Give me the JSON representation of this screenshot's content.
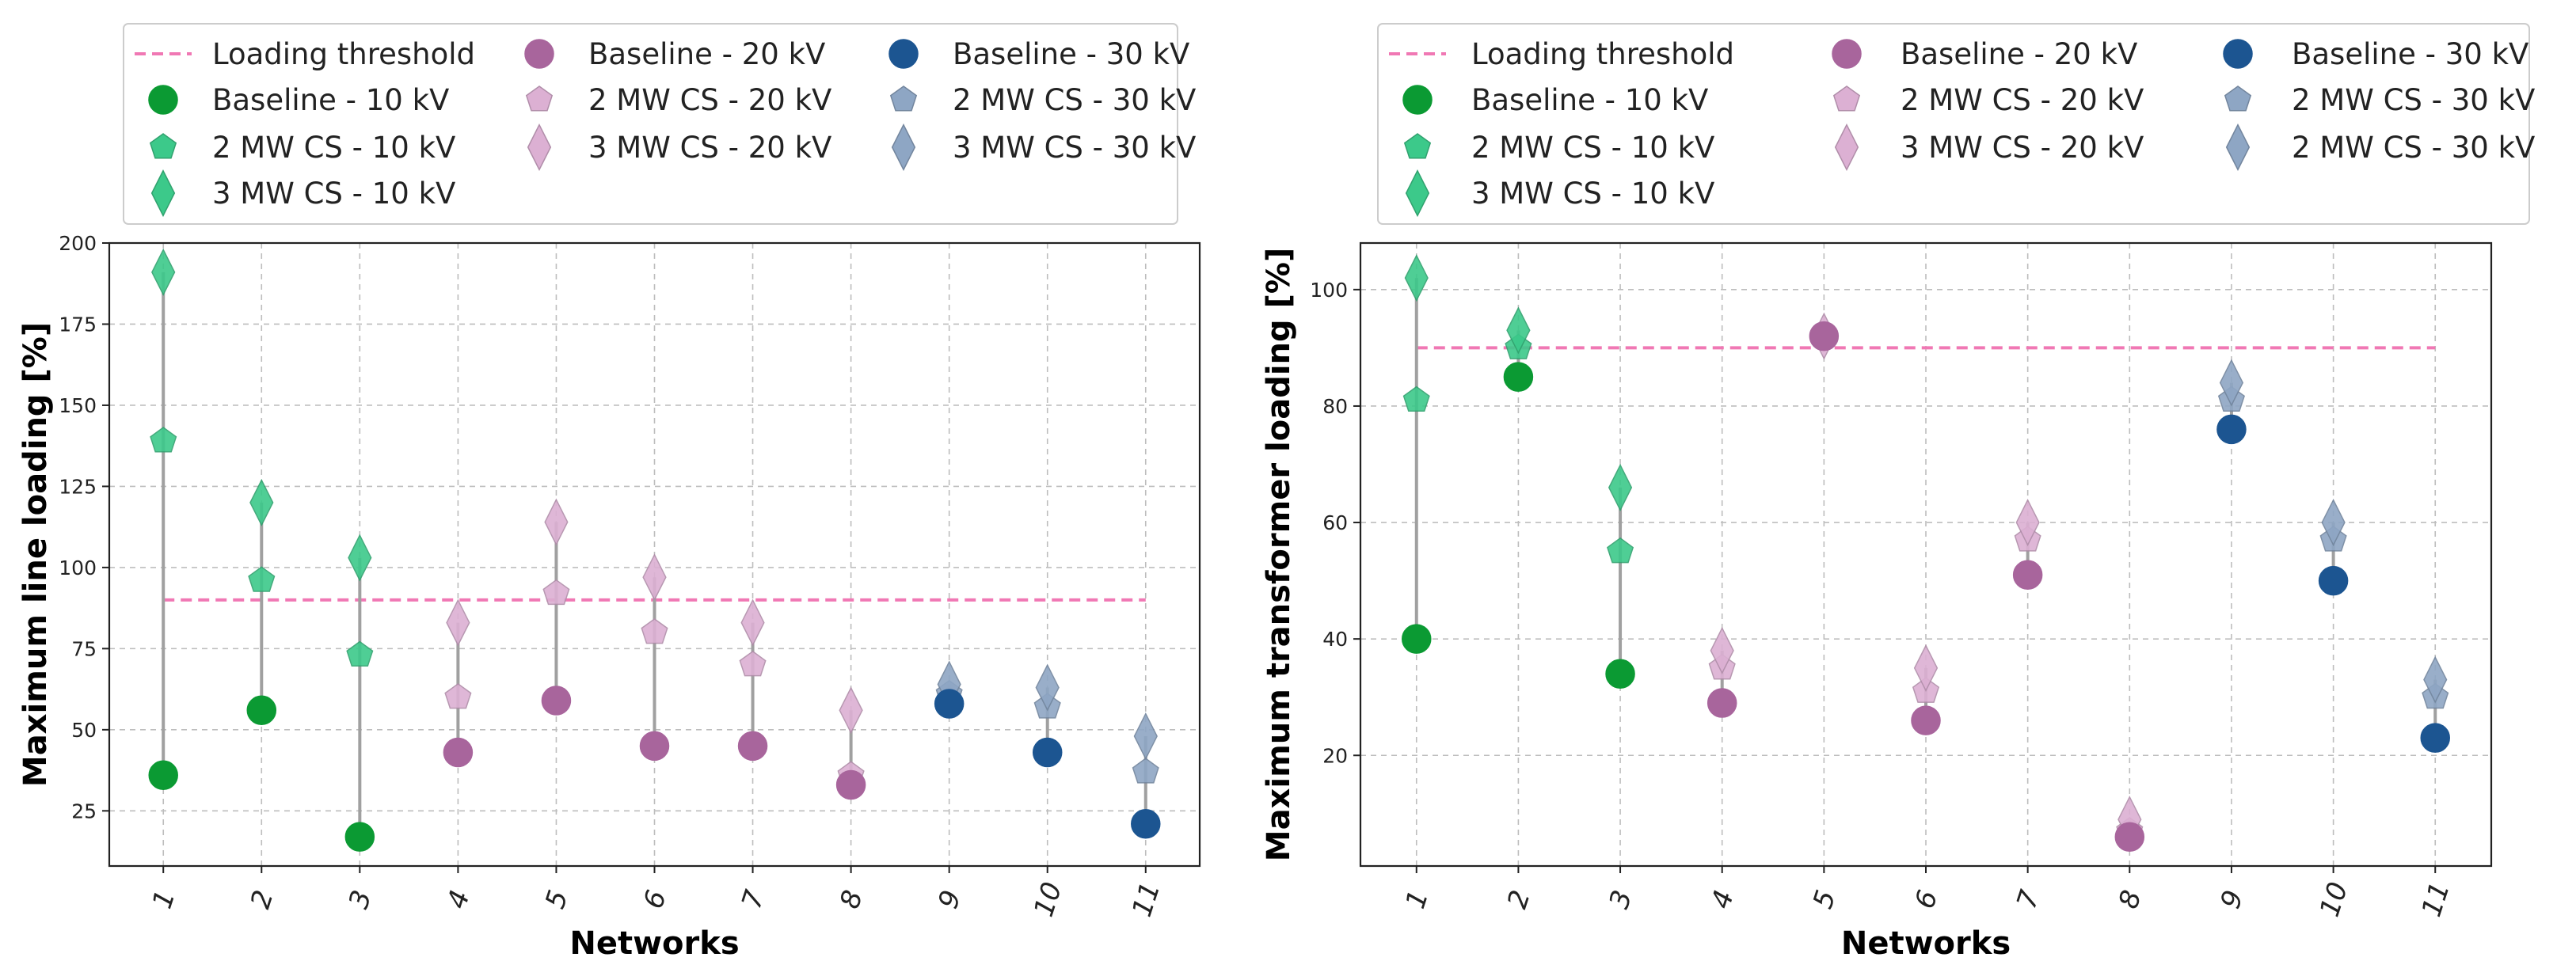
{
  "chart_data": [
    {
      "type": "scatter",
      "xlabel": "Networks",
      "ylabel": "Maximum line loading [%]",
      "categories": [
        "1",
        "2",
        "3",
        "4",
        "5",
        "6",
        "7",
        "8",
        "9",
        "10",
        "11"
      ],
      "yticks": [
        "25",
        "50",
        "75",
        "100",
        "125",
        "150",
        "175",
        "200"
      ],
      "ylim": [
        8,
        200
      ],
      "threshold": {
        "name": "Loading threshold",
        "value": 90,
        "color": "#f078b4"
      },
      "series": [
        {
          "name": "Baseline - 10 kV",
          "marker": "circle",
          "color": "#0b9a33",
          "x": [
            1,
            2,
            3
          ],
          "values": [
            36,
            56,
            17
          ]
        },
        {
          "name": "2 MW CS - 10 kV",
          "marker": "pentagon",
          "color": "#3cc98a",
          "x": [
            1,
            2,
            3
          ],
          "values": [
            139,
            96,
            73
          ]
        },
        {
          "name": "3 MW CS - 10 kV",
          "marker": "diamond",
          "color": "#3cc98a",
          "x": [
            1,
            2,
            3
          ],
          "values": [
            191,
            120,
            103
          ]
        },
        {
          "name": "Baseline - 20 kV",
          "marker": "circle",
          "color": "#a8659c",
          "x": [
            4,
            5,
            6,
            7,
            8
          ],
          "values": [
            43,
            59,
            45,
            45,
            33
          ]
        },
        {
          "name": "2 MW CS - 20 kV",
          "marker": "pentagon",
          "color": "#dcb0d3",
          "x": [
            4,
            5,
            6,
            7,
            8
          ],
          "values": [
            60,
            92,
            80,
            70,
            36
          ]
        },
        {
          "name": "3 MW CS - 20 kV",
          "marker": "diamond",
          "color": "#dcb0d3",
          "x": [
            4,
            5,
            6,
            7,
            8
          ],
          "values": [
            83,
            114,
            97,
            83,
            56
          ]
        },
        {
          "name": "Baseline - 30 kV",
          "marker": "circle",
          "color": "#1c5591",
          "x": [
            9,
            10,
            11
          ],
          "values": [
            58,
            43,
            21
          ]
        },
        {
          "name": "2 MW CS - 30 kV",
          "marker": "pentagon",
          "color": "#8ea6c4",
          "x": [
            9,
            10,
            11
          ],
          "values": [
            61,
            57,
            37
          ]
        },
        {
          "name": "3 MW CS - 30 kV",
          "marker": "diamond",
          "color": "#8ea6c4",
          "x": [
            9,
            10,
            11
          ],
          "values": [
            64,
            63,
            48
          ]
        }
      ]
    },
    {
      "type": "scatter",
      "xlabel": "Networks",
      "ylabel": "Maximum transformer loading [%]",
      "categories": [
        "1",
        "2",
        "3",
        "4",
        "5",
        "6",
        "7",
        "8",
        "9",
        "10",
        "11"
      ],
      "yticks": [
        "20",
        "40",
        "60",
        "80",
        "100"
      ],
      "ylim": [
        1,
        108
      ],
      "threshold": {
        "name": "Loading threshold",
        "value": 90,
        "color": "#f078b4"
      },
      "series": [
        {
          "name": "Baseline - 10 kV",
          "marker": "circle",
          "color": "#0b9a33",
          "x": [
            1,
            2,
            3
          ],
          "values": [
            40,
            85,
            34
          ]
        },
        {
          "name": "2 MW CS - 10 kV",
          "marker": "pentagon",
          "color": "#3cc98a",
          "x": [
            1,
            2,
            3
          ],
          "values": [
            81,
            90,
            55
          ]
        },
        {
          "name": "3 MW CS - 10 kV",
          "marker": "diamond",
          "color": "#3cc98a",
          "x": [
            1,
            2,
            3
          ],
          "values": [
            102,
            93,
            66
          ]
        },
        {
          "name": "Baseline - 20 kV",
          "marker": "circle",
          "color": "#a8659c",
          "x": [
            4,
            5,
            6,
            7,
            8
          ],
          "values": [
            29,
            92,
            26,
            51,
            6
          ]
        },
        {
          "name": "2 MW CS - 20 kV",
          "marker": "pentagon",
          "color": "#dcb0d3",
          "x": [
            4,
            5,
            6,
            7,
            8
          ],
          "values": [
            35,
            92,
            31,
            57,
            7
          ]
        },
        {
          "name": "3 MW CS - 20 kV",
          "marker": "diamond",
          "color": "#dcb0d3",
          "x": [
            4,
            5,
            6,
            7,
            8
          ],
          "values": [
            38,
            92,
            35,
            60,
            9
          ]
        },
        {
          "name": "Baseline - 30 kV",
          "marker": "circle",
          "color": "#1c5591",
          "x": [
            9,
            10,
            11
          ],
          "values": [
            76,
            50,
            23
          ]
        },
        {
          "name": "2 MW CS - 30 kV",
          "marker": "pentagon",
          "color": "#8ea6c4",
          "x": [
            9,
            10,
            11
          ],
          "values": [
            81,
            57,
            30
          ]
        },
        {
          "name": "2 MW CS - 30 kV",
          "marker": "diamond",
          "color": "#8ea6c4",
          "x": [
            9,
            10,
            11
          ],
          "values": [
            84,
            60,
            33
          ]
        }
      ]
    }
  ]
}
